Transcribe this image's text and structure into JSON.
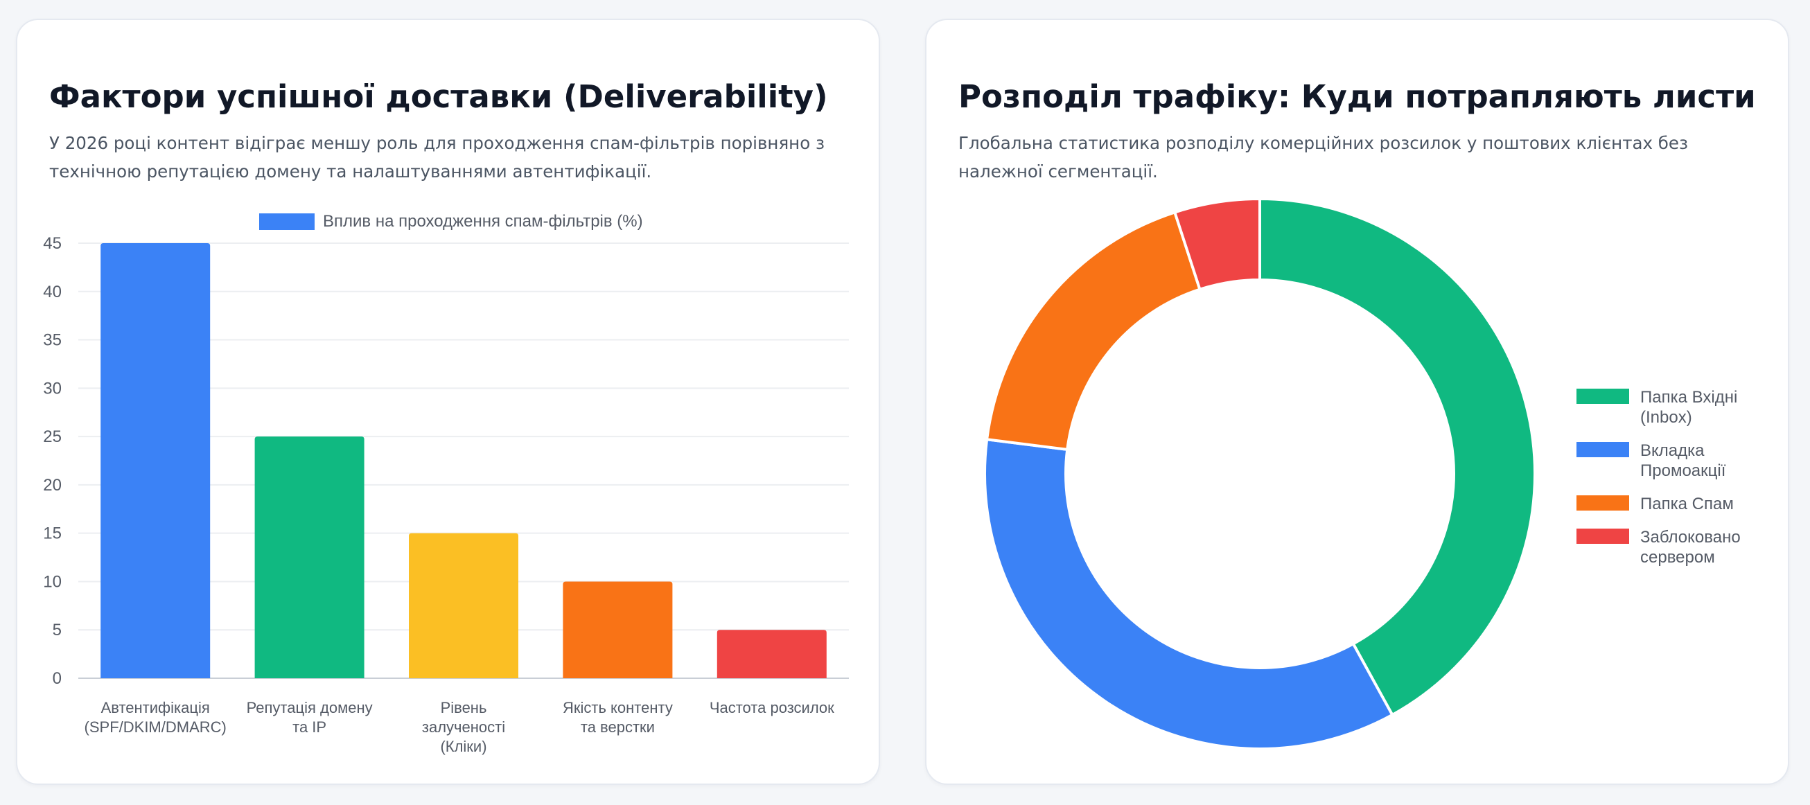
{
  "cards": {
    "left": {
      "title": "Фактори успішної доставки (Deliverability)",
      "subtitle": "У 2026 році контент відіграє меншу роль для проходження спам-фільтрів порівняно з технічною репутацією домену та налаштуваннями автентифікації."
    },
    "right": {
      "title": "Розподіл трафіку: Куди потрапляють листи",
      "subtitle": "Глобальна статистика розподілу комерційних розсилок у поштових клієнтах без належної сегментації."
    }
  },
  "chart_data": [
    {
      "type": "bar",
      "categories": [
        [
          "Автентифікація",
          "(SPF/DKIM/DMARC)"
        ],
        [
          "Репутація домену",
          "та IP"
        ],
        [
          "Рівень",
          "залученості",
          "(Кліки)"
        ],
        [
          "Якість контенту",
          "та верстки"
        ],
        [
          "Частота розсилок"
        ]
      ],
      "series": [
        {
          "name": "Вплив на проходження спам-фільтрів (%)",
          "values": [
            45,
            25,
            15,
            10,
            5
          ],
          "colors": [
            "#3b82f6",
            "#10b981",
            "#fbbf24",
            "#f97316",
            "#ef4444"
          ],
          "legend_color": "#3b82f6"
        }
      ],
      "ylim": [
        0,
        45
      ],
      "yticks": [
        0,
        5,
        10,
        15,
        20,
        25,
        30,
        35,
        40,
        45
      ],
      "grid": true,
      "legend_position": "top"
    },
    {
      "type": "pie",
      "donut": true,
      "labels": [
        [
          "Папка Вхідні",
          "(Inbox)"
        ],
        [
          "Вкладка",
          "Промоакції"
        ],
        [
          "Папка Спам"
        ],
        [
          "Заблоковано",
          "сервером"
        ]
      ],
      "values": [
        42,
        35,
        18,
        5
      ],
      "colors": [
        "#10b981",
        "#3b82f6",
        "#f97316",
        "#ef4444"
      ],
      "legend_position": "right"
    }
  ]
}
